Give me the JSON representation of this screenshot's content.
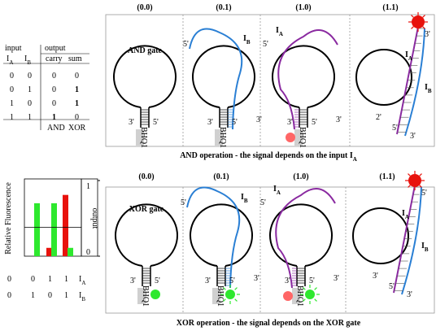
{
  "truth_table": {
    "header_input": "input",
    "header_output": "output",
    "columns": [
      {
        "text": "I",
        "sub": "A"
      },
      {
        "text": "I",
        "sub": "B"
      },
      {
        "text": "carry"
      },
      {
        "text": "sum"
      }
    ],
    "rows": [
      [
        0,
        0,
        0,
        0
      ],
      [
        0,
        1,
        0,
        1
      ],
      [
        1,
        0,
        0,
        1
      ],
      [
        1,
        1,
        1,
        0
      ]
    ],
    "footer": [
      "AND",
      "XOR"
    ]
  },
  "chart_data": {
    "type": "bar",
    "y_label": "Relative Fluorescence",
    "y2_label": "output",
    "y2lim": [
      0,
      1
    ],
    "y2ticks": [
      0,
      1
    ],
    "threshold": 0.38,
    "series": [
      {
        "color": "#e8120c",
        "values": [
          0,
          0,
          0.11,
          0.81
        ]
      },
      {
        "color": "#2ee82e",
        "values": [
          0,
          0.7,
          0.7,
          0.11
        ]
      }
    ],
    "inputs": [
      {
        "text": "I",
        "sub": "A",
        "values": [
          0,
          0,
          1,
          1
        ]
      },
      {
        "text": "I",
        "sub": "B",
        "values": [
          0,
          1,
          0,
          1
        ]
      }
    ]
  },
  "and_panel": {
    "caption": "AND operation - the signal depends on the input I",
    "caption_sub": "A",
    "quencher": "BHQ1",
    "panels": [
      {
        "header": "(0.0)",
        "gate": "AND gate",
        "ends": [
          "3'",
          "5'"
        ]
      },
      {
        "header": "(0.1)",
        "strands": [
          {
            "text": "I",
            "sub": "B"
          }
        ],
        "ends": [
          "3'",
          "5'",
          "5'",
          "3'"
        ]
      },
      {
        "header": "(1.0)",
        "strands": [
          {
            "text": "I",
            "sub": "A"
          }
        ],
        "ends": [
          "3'",
          "5'",
          "5'",
          "3'"
        ]
      },
      {
        "header": "(1.1)",
        "strands": [
          {
            "text": "I",
            "sub": "A"
          },
          {
            "text": "I",
            "sub": "B"
          }
        ],
        "ends": [
          "2'",
          "3'",
          "5'",
          "3'"
        ]
      }
    ]
  },
  "xor_panel": {
    "caption": "XOR operation - the signal depends on the XOR gate",
    "quencher": "BHQ1",
    "panels": [
      {
        "header": "(0.0)",
        "gate": "XOR gate",
        "ends": [
          "3'",
          "5'"
        ]
      },
      {
        "header": "(0.1)",
        "strands": [
          {
            "text": "I",
            "sub": "B"
          }
        ],
        "ends": [
          "3'",
          "5'",
          "5'",
          "3'"
        ]
      },
      {
        "header": "(1.0)",
        "strands": [
          {
            "text": "I",
            "sub": "A"
          }
        ],
        "ends": [
          "3'",
          "5'",
          "5'",
          "3'"
        ]
      },
      {
        "header": "(1.1)",
        "strands": [
          {
            "text": "I",
            "sub": "A"
          },
          {
            "text": "I",
            "sub": "B"
          }
        ],
        "ends": [
          "3'",
          "5'",
          "5'",
          "3'"
        ]
      }
    ]
  }
}
